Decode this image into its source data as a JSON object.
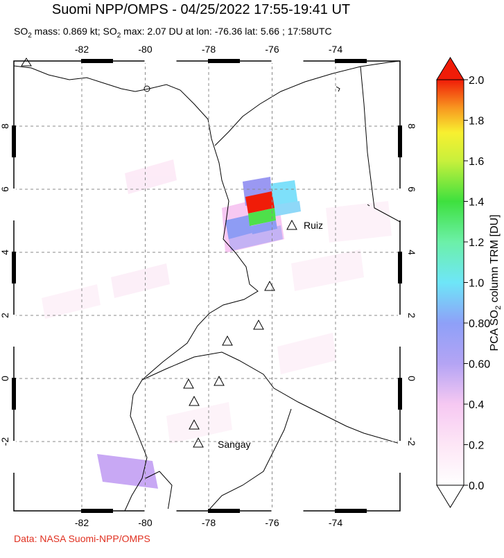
{
  "title": "Suomi NPP/OMPS - 04/25/2022 17:55-19:41 UT",
  "subtitle": [
    "SO",
    "2",
    " mass: 0.869 kt; SO",
    "2",
    " max: 2.07 DU at lon: -76.36 lat: 5.66 ; 17:58UTC"
  ],
  "map": {
    "lon_ticks": [
      -82,
      -80,
      -78,
      -76,
      -74
    ],
    "lat_ticks": [
      8,
      6,
      4,
      2,
      0,
      -2
    ],
    "volcanoes": [
      "Ruiz",
      "Sangay"
    ]
  },
  "colorbar": {
    "label": [
      "PCA SO",
      "2",
      " column TRM [DU]"
    ],
    "ticks": [
      {
        "value": 2.0,
        "label": "2.0"
      },
      {
        "value": 1.8,
        "label": "1.8"
      },
      {
        "value": 1.6,
        "label": "1.6"
      },
      {
        "value": 1.4,
        "label": "1.4"
      },
      {
        "value": 1.2,
        "label": "1.2"
      },
      {
        "value": 1.0,
        "label": "1.0"
      },
      {
        "value": 0.8,
        "label": "0.80"
      },
      {
        "value": 0.6,
        "label": "0.60"
      },
      {
        "value": 0.4,
        "label": "0.4"
      },
      {
        "value": 0.2,
        "label": "0.2"
      },
      {
        "value": 0.0,
        "label": "0.0"
      }
    ],
    "range": [
      0,
      2
    ]
  },
  "footer": "Data: NASA Suomi-NPP/OMPS"
}
